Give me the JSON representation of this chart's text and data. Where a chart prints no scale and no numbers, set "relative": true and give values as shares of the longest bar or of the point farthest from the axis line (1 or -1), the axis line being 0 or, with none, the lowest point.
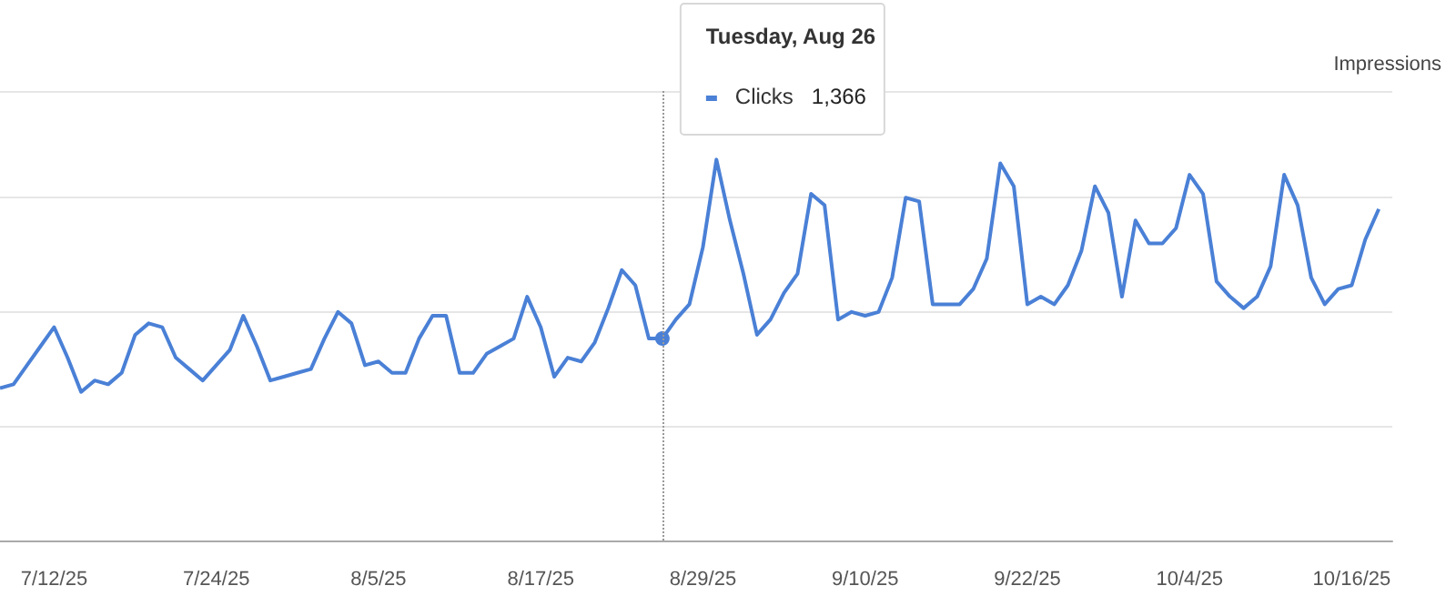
{
  "chart_data": {
    "type": "line",
    "relative": true,
    "y2label": "Impressions",
    "grid": "y",
    "marker": "none",
    "line_style": "solid",
    "x": [
      "--07-08",
      "--07-09",
      "--07-10",
      "--07-11",
      "--07-12",
      "--07-13",
      "--07-14",
      "--07-15",
      "--07-16",
      "--07-17",
      "--07-18",
      "--07-19",
      "--07-20",
      "--07-21",
      "--07-22",
      "--07-23",
      "--07-24",
      "--07-25",
      "--07-26",
      "--07-27",
      "--07-28",
      "--07-29",
      "--07-30",
      "--07-31",
      "--08-01",
      "--08-02",
      "--08-03",
      "--08-04",
      "--08-05",
      "--08-06",
      "--08-07",
      "--08-08",
      "--08-09",
      "--08-10",
      "--08-11",
      "--08-12",
      "--08-13",
      "--08-14",
      "--08-15",
      "--08-16",
      "--08-17",
      "--08-18",
      "--08-19",
      "--08-20",
      "--08-21",
      "--08-22",
      "--08-23",
      "--08-24",
      "--08-25",
      "--08-26",
      "--08-27",
      "--08-28",
      "--08-29",
      "--08-30",
      "--08-31",
      "--09-01",
      "--09-02",
      "--09-03",
      "--09-04",
      "--09-05",
      "--09-06",
      "--09-07",
      "--09-08",
      "--09-09",
      "--09-10",
      "--09-11",
      "--09-12",
      "--09-13",
      "--09-14",
      "--09-15",
      "--09-16",
      "--09-17",
      "--09-18",
      "--09-19",
      "--09-20",
      "--09-21",
      "--09-22",
      "--09-23",
      "--09-24",
      "--09-25",
      "--09-26",
      "--09-27",
      "--09-28",
      "--09-29",
      "--09-30",
      "--10-01",
      "--10-02",
      "--10-03",
      "--10-04",
      "--10-05",
      "--10-06",
      "--10-07",
      "--10-08",
      "--10-09",
      "--10-10",
      "--10-11",
      "--10-12",
      "--10-13",
      "--10-14",
      "--10-15",
      "--10-16",
      "--10-17",
      "--10-18"
    ],
    "xlim": [
      "--07-08",
      "--10-19"
    ],
    "xticks": [
      {
        "value": "--07-12",
        "label": "7/12/25"
      },
      {
        "value": "--07-24",
        "label": "7/24/25"
      },
      {
        "value": "--08-05",
        "label": "8/5/25"
      },
      {
        "value": "--08-17",
        "label": "8/17/25"
      },
      {
        "value": "--08-29",
        "label": "8/29/25"
      },
      {
        "value": "--09-10",
        "label": "9/10/25"
      },
      {
        "value": "--09-22",
        "label": "9/22/25"
      },
      {
        "value": "--10-04",
        "label": "10/4/25"
      },
      {
        "value": "--10-16",
        "label": "10/16/25"
      }
    ],
    "series": [
      {
        "name": "Clicks",
        "color": "#4a80d6",
        "values": [
          0.4,
          0.41,
          0.46,
          0.51,
          0.56,
          0.48,
          0.39,
          0.42,
          0.41,
          0.44,
          0.54,
          0.57,
          0.56,
          0.48,
          0.45,
          0.42,
          0.46,
          0.5,
          0.59,
          0.51,
          0.42,
          0.43,
          0.44,
          0.45,
          0.53,
          0.6,
          0.57,
          0.46,
          0.47,
          0.44,
          0.44,
          0.53,
          0.59,
          0.59,
          0.44,
          0.44,
          0.49,
          0.51,
          0.53,
          0.64,
          0.56,
          0.43,
          0.48,
          0.47,
          0.52,
          0.61,
          0.71,
          0.67,
          0.53,
          0.53,
          0.58,
          0.62,
          0.77,
          1,
          0.84,
          0.7,
          0.54,
          0.58,
          0.65,
          0.7,
          0.91,
          0.88,
          0.58,
          0.6,
          0.59,
          0.6,
          0.69,
          0.9,
          0.89,
          0.62,
          0.62,
          0.62,
          0.66,
          0.74,
          0.99,
          0.93,
          0.62,
          0.64,
          0.62,
          0.67,
          0.76,
          0.93,
          0.86,
          0.64,
          0.84,
          0.78,
          0.78,
          0.82,
          0.96,
          0.91,
          0.68,
          0.64,
          0.61,
          0.64,
          0.72,
          0.96,
          0.88,
          0.69,
          0.62,
          0.66,
          0.67,
          0.79,
          0.87
        ]
      }
    ],
    "ref_lines": [
      {
        "axis": "x",
        "value": "--08-26",
        "color": "#999999",
        "line_style": "dotted"
      }
    ],
    "annotations": [
      "Tuesday, Aug 26",
      "1,366"
    ]
  }
}
